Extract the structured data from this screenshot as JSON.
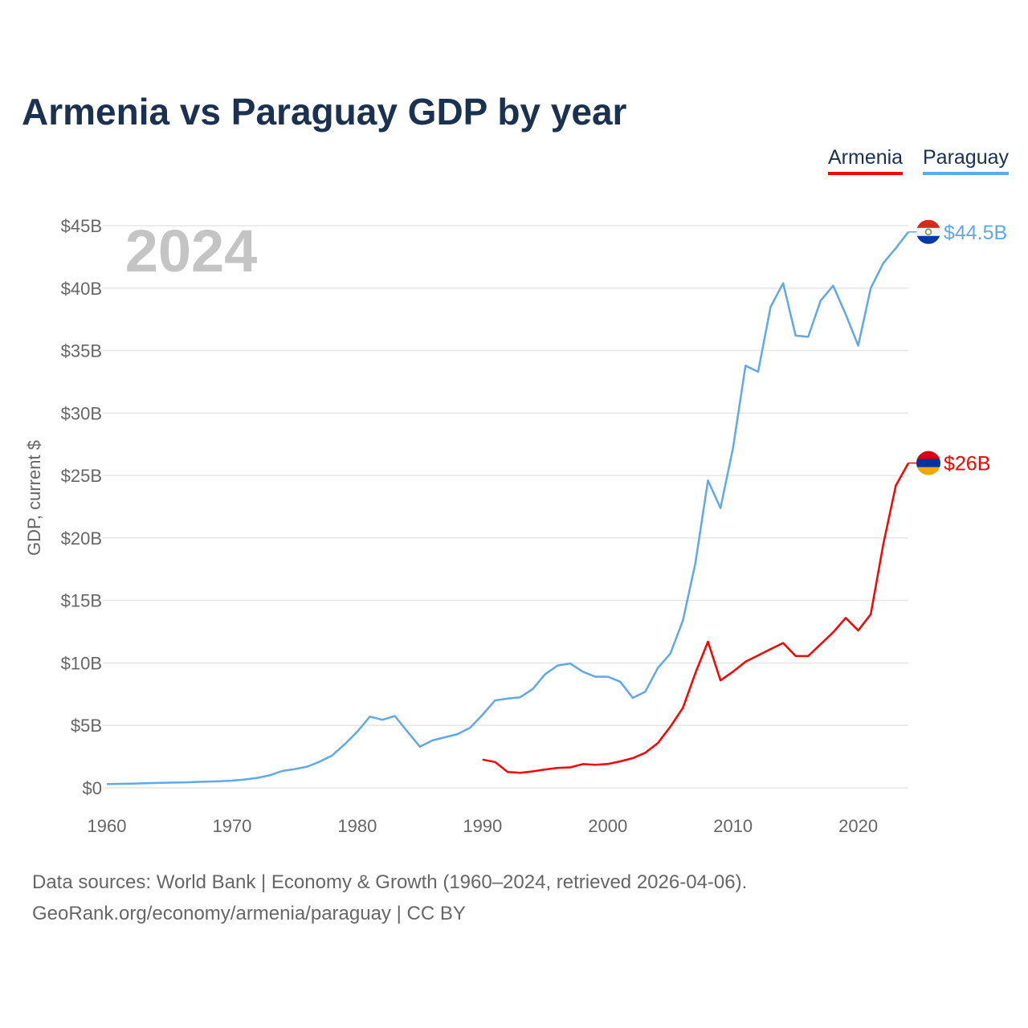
{
  "title": "Armenia vs Paraguay GDP by year",
  "year_label": "2024",
  "legend": [
    "Armenia",
    "Paraguay"
  ],
  "footer": {
    "line1": "Data sources: World Bank | Economy & Growth (1960–2024, retrieved 2026-04-06).",
    "line2": "GeoRank.org/economy/armenia/paraguay | CC BY"
  },
  "chart_data": {
    "type": "line",
    "title": "Armenia vs Paraguay GDP by year",
    "xlabel": "",
    "ylabel": "GDP, current $",
    "xlim": [
      1960,
      2024
    ],
    "ylim": [
      0,
      45
    ],
    "grid": true,
    "legend_position": "top-right",
    "x_ticks": [
      1960,
      1970,
      1980,
      1990,
      2000,
      2010,
      2020
    ],
    "y_ticks": [
      0,
      5,
      10,
      15,
      20,
      25,
      30,
      35,
      40,
      45
    ],
    "y_tick_labels": [
      "$0",
      "$5B",
      "$10B",
      "$15B",
      "$20B",
      "$25B",
      "$30B",
      "$35B",
      "$40B",
      "$45B"
    ],
    "series": [
      {
        "name": "Armenia",
        "color": "#ff0000",
        "end_label": "$26B",
        "start_year": 1990,
        "values": [
          2.26,
          2.07,
          1.27,
          1.2,
          1.32,
          1.47,
          1.6,
          1.64,
          1.9,
          1.85,
          1.91,
          2.12,
          2.38,
          2.81,
          3.58,
          4.9,
          6.4,
          9.2,
          11.7,
          8.6,
          9.3,
          10.1,
          10.6,
          11.1,
          11.6,
          10.55,
          10.55,
          11.5,
          12.45,
          13.6,
          12.6,
          13.9,
          19.5,
          24.2,
          26.0
        ]
      },
      {
        "name": "Paraguay",
        "color": "#5fa8ea",
        "end_label": "$44.5B",
        "start_year": 1960,
        "values": [
          0.3,
          0.32,
          0.34,
          0.37,
          0.39,
          0.42,
          0.44,
          0.47,
          0.5,
          0.53,
          0.58,
          0.67,
          0.8,
          1.0,
          1.35,
          1.5,
          1.7,
          2.1,
          2.6,
          3.5,
          4.5,
          5.7,
          5.45,
          5.75,
          4.5,
          3.3,
          3.8,
          4.05,
          4.3,
          4.8,
          5.85,
          7.0,
          7.15,
          7.25,
          7.9,
          9.1,
          9.8,
          9.95,
          9.3,
          8.9,
          8.9,
          8.5,
          7.2,
          7.7,
          9.6,
          10.75,
          13.4,
          18.0,
          24.6,
          22.4,
          27.2,
          33.8,
          33.3,
          38.5,
          40.4,
          36.2,
          36.1,
          39.0,
          40.2,
          37.9,
          35.4,
          40.0,
          42.0,
          43.2,
          44.5
        ]
      }
    ]
  }
}
